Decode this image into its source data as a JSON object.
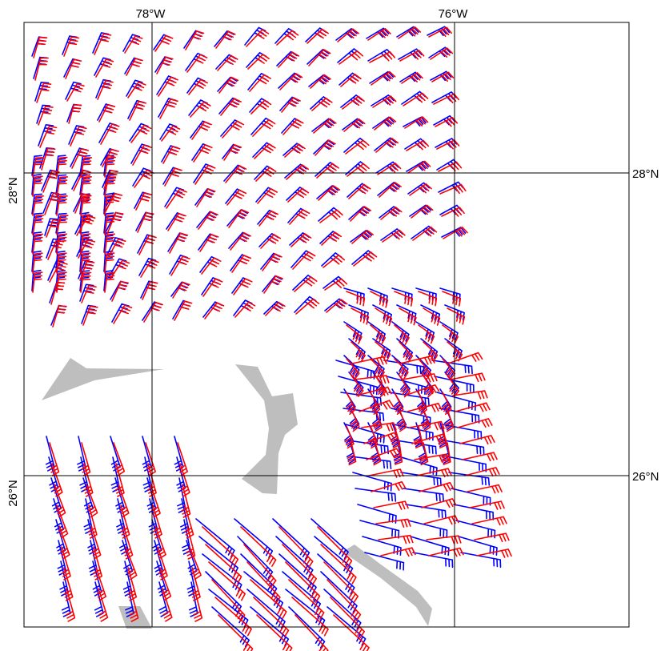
{
  "map": {
    "longitude_labels": [
      {
        "text": "78°W",
        "lon": -78
      },
      {
        "text": "76°W",
        "lon": -76
      }
    ],
    "latitude_labels": [
      {
        "text": "28°N",
        "lat": 28,
        "side": "left"
      },
      {
        "text": "28°N",
        "lat": 28,
        "side": "right"
      },
      {
        "text": "26°N",
        "lat": 26,
        "side": "left"
      },
      {
        "text": "26°N",
        "lat": 26,
        "side": "right"
      }
    ],
    "grid": true,
    "land_color": "#bebebe",
    "series": [
      {
        "color": "#0000ff",
        "style": "wind-barbs"
      },
      {
        "color": "#ff0000",
        "style": "wind-barbs"
      }
    ]
  }
}
